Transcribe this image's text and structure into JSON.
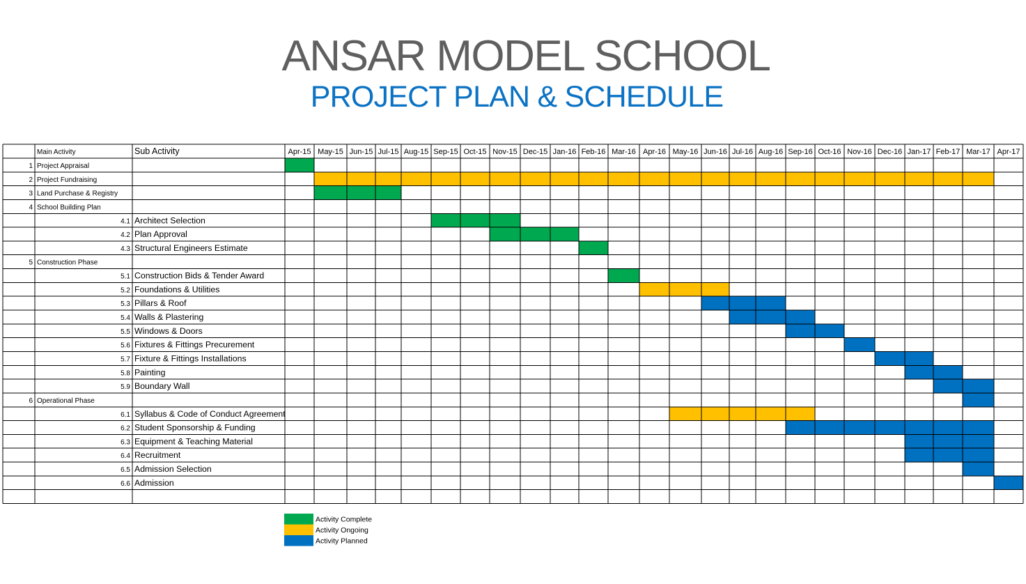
{
  "header": {
    "title": "ANSAR MODEL SCHOOL",
    "subtitle": "PROJECT PLAN & SCHEDULE"
  },
  "chart_data": {
    "type": "table",
    "columns": {
      "main": "Main Activity",
      "sub": "Sub Activity"
    },
    "months": [
      "Apr-15",
      "May-15",
      "Jun-15",
      "Jul-15",
      "Aug-15",
      "Sep-15",
      "Oct-15",
      "Nov-15",
      "Dec-15",
      "Jan-16",
      "Feb-16",
      "Mar-16",
      "Apr-16",
      "May-16",
      "Jun-16",
      "Jul-16",
      "Aug-16",
      "Sep-16",
      "Oct-16",
      "Nov-16",
      "Dec-16",
      "Jan-17",
      "Feb-17",
      "Mar-17",
      "Apr-17"
    ],
    "status_colors": {
      "complete": "#00a84f",
      "ongoing": "#ffc000",
      "planned": "#0070c0"
    },
    "legend": [
      {
        "status": "complete",
        "label": "Activity Complete"
      },
      {
        "status": "ongoing",
        "label": "Activity Ongoing"
      },
      {
        "status": "planned",
        "label": "Activity Planned"
      }
    ],
    "rows": [
      {
        "num": "1",
        "main": "Project Appraisal",
        "sub": "",
        "status": "complete",
        "start": "Apr-15",
        "end": "Apr-15"
      },
      {
        "num": "2",
        "main": "Project Fundraising",
        "sub": "",
        "status": "ongoing",
        "start": "May-15",
        "end": "Mar-17"
      },
      {
        "num": "3",
        "main": "Land Purchase & Registry",
        "sub": "",
        "status": "complete",
        "start": "May-15",
        "end": "Jul-15"
      },
      {
        "num": "4",
        "main": "School Building Plan",
        "sub": "",
        "status": null,
        "start": null,
        "end": null
      },
      {
        "num": "4.1",
        "main": "",
        "sub": "Architect Selection",
        "status": "complete",
        "start": "Sep-15",
        "end": "Nov-15"
      },
      {
        "num": "4.2",
        "main": "",
        "sub": "Plan Approval",
        "status": "complete",
        "start": "Nov-15",
        "end": "Jan-16"
      },
      {
        "num": "4.3",
        "main": "",
        "sub": "Structural Engineers Estimate",
        "status": "complete",
        "start": "Feb-16",
        "end": "Feb-16"
      },
      {
        "num": "5",
        "main": "Construction Phase",
        "sub": "",
        "status": null,
        "start": null,
        "end": null
      },
      {
        "num": "5.1",
        "main": "",
        "sub": "Construction Bids & Tender Award",
        "status": "complete",
        "start": "Mar-16",
        "end": "Mar-16"
      },
      {
        "num": "5.2",
        "main": "",
        "sub": "Foundations & Utilities",
        "status": "ongoing",
        "start": "Apr-16",
        "end": "Jun-16"
      },
      {
        "num": "5.3",
        "main": "",
        "sub": "Pillars & Roof",
        "status": "planned",
        "start": "Jun-16",
        "end": "Aug-16"
      },
      {
        "num": "5.4",
        "main": "",
        "sub": "Walls & Plastering",
        "status": "planned",
        "start": "Jul-16",
        "end": "Sep-16"
      },
      {
        "num": "5.5",
        "main": "",
        "sub": "Windows & Doors",
        "status": "planned",
        "start": "Sep-16",
        "end": "Oct-16"
      },
      {
        "num": "5.6",
        "main": "",
        "sub": "Fixtures & Fittings Precurement",
        "status": "planned",
        "start": "Nov-16",
        "end": "Nov-16"
      },
      {
        "num": "5.7",
        "main": "",
        "sub": "Fixture & Fittings Installations",
        "status": "planned",
        "start": "Dec-16",
        "end": "Jan-17"
      },
      {
        "num": "5.8",
        "main": "",
        "sub": "Painting",
        "status": "planned",
        "start": "Jan-17",
        "end": "Feb-17"
      },
      {
        "num": "5.9",
        "main": "",
        "sub": "Boundary Wall",
        "status": "planned",
        "start": "Feb-17",
        "end": "Mar-17"
      },
      {
        "num": "6",
        "main": "Operational Phase",
        "sub": "",
        "status": "planned",
        "start": "Mar-17",
        "end": "Mar-17"
      },
      {
        "num": "6.1",
        "main": "",
        "sub": "Syllabus & Code of Conduct Agreement",
        "status": "ongoing",
        "start": "May-16",
        "end": "Sep-16"
      },
      {
        "num": "6.2",
        "main": "",
        "sub": "Student Sponsorship & Funding",
        "status": "planned",
        "start": "Sep-16",
        "end": "Mar-17"
      },
      {
        "num": "6.3",
        "main": "",
        "sub": "Equipment & Teaching Material",
        "status": "planned",
        "start": "Jan-17",
        "end": "Mar-17"
      },
      {
        "num": "6.4",
        "main": "",
        "sub": "Recruitment",
        "status": "planned",
        "start": "Jan-17",
        "end": "Mar-17"
      },
      {
        "num": "6.5",
        "main": "",
        "sub": "Admission Selection",
        "status": "planned",
        "start": "Mar-17",
        "end": "Mar-17"
      },
      {
        "num": "6.6",
        "main": "",
        "sub": "Admission",
        "status": "planned",
        "start": "Apr-17",
        "end": "Apr-17"
      },
      {
        "num": "",
        "main": "",
        "sub": "",
        "status": null,
        "start": null,
        "end": null
      }
    ]
  }
}
